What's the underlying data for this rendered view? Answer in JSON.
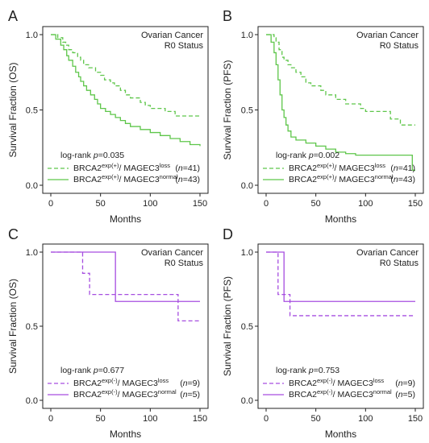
{
  "colors": {
    "green": "#5ec64a",
    "purple": "#a64ee0",
    "axis": "#222222"
  },
  "chart_data": [
    {
      "panel": "A",
      "type": "line",
      "title": "Ovarian Cancer",
      "subtitle": "R0 Status",
      "xlabel": "Months",
      "ylabel": "Survival Fraction (OS)",
      "xlim": [
        0,
        150
      ],
      "ylim": [
        0,
        1
      ],
      "xticks": [
        "0",
        "50",
        "100",
        "150"
      ],
      "yticks": [
        "0.0",
        "0.5",
        "1.0"
      ],
      "stat": "0.035",
      "legend_placement": "bottom-left",
      "series": [
        {
          "name": "BRCA2exp(+)/ MAGEC3loss",
          "label_base": "BRCA2",
          "label_sup1": "exp(+)",
          "label_mid": "/ MAGEC3",
          "label_sup2": "loss",
          "n_text": "41",
          "style": "dashed",
          "color": "#5ec64a",
          "x": [
            0,
            7,
            12,
            15,
            18,
            22,
            27,
            30,
            33,
            38,
            45,
            50,
            54,
            60,
            64,
            70,
            75,
            80,
            90,
            95,
            100,
            105,
            115,
            120,
            125,
            133,
            150
          ],
          "y": [
            1.0,
            0.98,
            0.95,
            0.93,
            0.9,
            0.88,
            0.85,
            0.83,
            0.8,
            0.78,
            0.75,
            0.73,
            0.7,
            0.68,
            0.66,
            0.63,
            0.6,
            0.58,
            0.55,
            0.53,
            0.51,
            0.51,
            0.49,
            0.49,
            0.46,
            0.46,
            0.46
          ]
        },
        {
          "name": "BRCA2exp(+)/ MAGEC3normal",
          "label_base": "BRCA2",
          "label_sup1": "exp(+)",
          "label_mid": "/ MAGEC3",
          "label_sup2": "normal",
          "n_text": "43",
          "style": "solid",
          "color": "#5ec64a",
          "x": [
            0,
            5,
            10,
            13,
            16,
            18,
            22,
            25,
            28,
            30,
            33,
            36,
            40,
            44,
            47,
            50,
            55,
            60,
            65,
            70,
            75,
            80,
            90,
            100,
            110,
            120,
            130,
            140,
            150
          ],
          "y": [
            1.0,
            0.97,
            0.93,
            0.9,
            0.86,
            0.83,
            0.79,
            0.75,
            0.72,
            0.69,
            0.66,
            0.63,
            0.6,
            0.57,
            0.54,
            0.51,
            0.49,
            0.47,
            0.45,
            0.43,
            0.41,
            0.39,
            0.37,
            0.35,
            0.33,
            0.31,
            0.29,
            0.27,
            0.26
          ]
        }
      ]
    },
    {
      "panel": "B",
      "type": "line",
      "title": "Ovarian Cancer",
      "subtitle": "R0 Status",
      "xlabel": "Months",
      "ylabel": "Survival Fraction (PFS)",
      "xlim": [
        0,
        150
      ],
      "ylim": [
        0,
        1
      ],
      "xticks": [
        "0",
        "50",
        "100",
        "150"
      ],
      "yticks": [
        "0.0",
        "0.5",
        "1.0"
      ],
      "stat": "0.002",
      "legend_placement": "bottom-left",
      "series": [
        {
          "name": "BRCA2exp(+)/ MAGEC3loss",
          "label_base": "BRCA2",
          "label_sup1": "exp(+)",
          "label_mid": "/ MAGEC3",
          "label_sup2": "loss",
          "n_text": "41",
          "style": "dashed",
          "color": "#5ec64a",
          "x": [
            0,
            8,
            10,
            13,
            16,
            18,
            22,
            25,
            30,
            35,
            40,
            45,
            55,
            60,
            70,
            80,
            95,
            100,
            115,
            125,
            130,
            135,
            150
          ],
          "y": [
            1.0,
            0.98,
            0.95,
            0.9,
            0.85,
            0.83,
            0.8,
            0.78,
            0.75,
            0.72,
            0.68,
            0.66,
            0.63,
            0.6,
            0.57,
            0.54,
            0.51,
            0.49,
            0.49,
            0.44,
            0.44,
            0.4,
            0.4
          ]
        },
        {
          "name": "BRCA2exp(+)/ MAGEC3normal",
          "label_base": "BRCA2",
          "label_sup1": "exp(+)",
          "label_mid": "/ MAGEC3",
          "label_sup2": "normal",
          "n_text": "43",
          "style": "solid",
          "color": "#5ec64a",
          "x": [
            0,
            5,
            8,
            10,
            12,
            14,
            16,
            18,
            20,
            22,
            25,
            30,
            40,
            50,
            60,
            70,
            80,
            90,
            100,
            147,
            150
          ],
          "y": [
            1.0,
            0.95,
            0.88,
            0.8,
            0.7,
            0.6,
            0.5,
            0.45,
            0.4,
            0.36,
            0.32,
            0.3,
            0.28,
            0.26,
            0.24,
            0.22,
            0.21,
            0.2,
            0.2,
            0.1,
            0.1
          ]
        }
      ]
    },
    {
      "panel": "C",
      "type": "line",
      "title": "Ovarian Cancer",
      "subtitle": "R0 Status",
      "xlabel": "Months",
      "ylabel": "Survival Fraction (OS)",
      "xlim": [
        0,
        150
      ],
      "ylim": [
        0,
        1
      ],
      "xticks": [
        "0",
        "50",
        "100",
        "150"
      ],
      "yticks": [
        "0.0",
        "0.5",
        "1.0"
      ],
      "stat": "0.677",
      "legend_placement": "bottom-left",
      "series": [
        {
          "name": "BRCA2exp(-)/ MAGEC3loss",
          "label_base": "BRCA2",
          "label_sup1": "exp(-)",
          "label_mid": "/ MAGEC3",
          "label_sup2": "loss",
          "n_text": "9",
          "style": "dashed",
          "color": "#a64ee0",
          "x": [
            0,
            32,
            39,
            128,
            150
          ],
          "y": [
            1.0,
            0.857,
            0.714,
            0.536,
            0.536
          ]
        },
        {
          "name": "BRCA2exp(-)/ MAGEC3normal",
          "label_base": "BRCA2",
          "label_sup1": "exp(-)",
          "label_mid": "/ MAGEC3",
          "label_sup2": "normal",
          "n_text": "5",
          "style": "solid",
          "color": "#a64ee0",
          "x": [
            0,
            65,
            150
          ],
          "y": [
            1.0,
            0.667,
            0.667
          ]
        }
      ]
    },
    {
      "panel": "D",
      "type": "line",
      "title": "Ovarian Cancer",
      "subtitle": "R0 Status",
      "xlabel": "Months",
      "ylabel": "Survival Fraction (PFS)",
      "xlim": [
        0,
        150
      ],
      "ylim": [
        0,
        1
      ],
      "xticks": [
        "0",
        "50",
        "100",
        "150"
      ],
      "yticks": [
        "0.0",
        "0.5",
        "1.0"
      ],
      "stat": "0.753",
      "legend_placement": "bottom-left",
      "series": [
        {
          "name": "BRCA2exp(-)/ MAGEC3loss",
          "label_base": "BRCA2",
          "label_sup1": "exp(-)",
          "label_mid": "/ MAGEC3",
          "label_sup2": "loss",
          "n_text": "9",
          "style": "dashed",
          "color": "#a64ee0",
          "x": [
            0,
            12,
            18,
            24,
            150
          ],
          "y": [
            1.0,
            0.714,
            0.714,
            0.571,
            0.571
          ]
        },
        {
          "name": "BRCA2exp(-)/ MAGEC3normal",
          "label_base": "BRCA2",
          "label_sup1": "exp(-)",
          "label_mid": "/ MAGEC3",
          "label_sup2": "normal",
          "n_text": "5",
          "style": "solid",
          "color": "#a64ee0",
          "x": [
            0,
            18,
            150
          ],
          "y": [
            1.0,
            0.667,
            0.667
          ]
        }
      ]
    }
  ]
}
